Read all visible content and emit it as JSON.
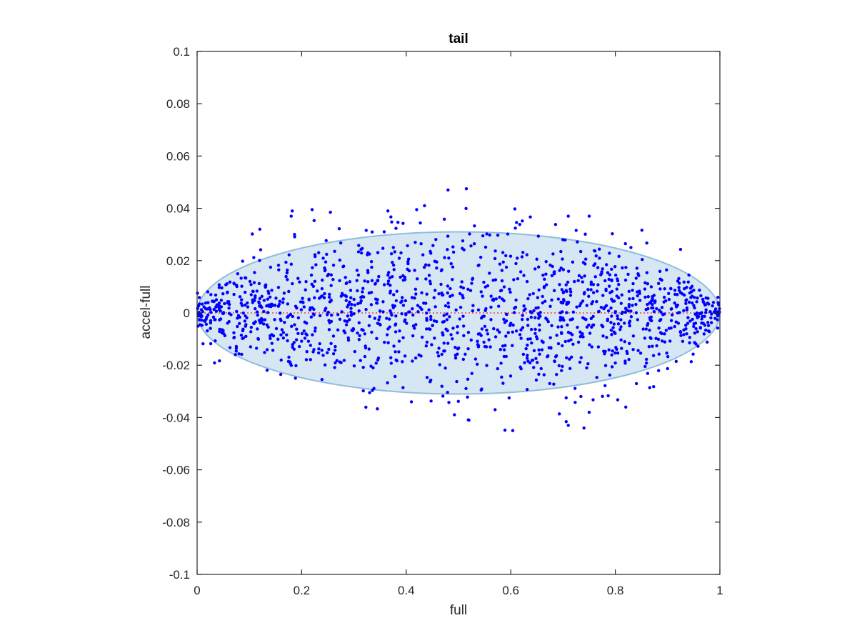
{
  "chart_data": {
    "type": "scatter",
    "title": "tail",
    "xlabel": "full",
    "ylabel": "accel-full",
    "xlim": [
      0,
      1
    ],
    "ylim": [
      -0.1,
      0.1
    ],
    "xticks": [
      0,
      0.2,
      0.4,
      0.6,
      0.8,
      1
    ],
    "xtick_labels": [
      "0",
      "0.2",
      "0.4",
      "0.6",
      "0.8",
      "1"
    ],
    "yticks": [
      -0.1,
      -0.08,
      -0.06,
      -0.04,
      -0.02,
      0,
      0.02,
      0.04,
      0.06,
      0.08,
      0.1
    ],
    "ytick_labels": [
      "-0.1",
      "-0.08",
      "-0.06",
      "-0.04",
      "-0.02",
      "0",
      "0.02",
      "0.04",
      "0.06",
      "0.08",
      "0.1"
    ],
    "grid": false,
    "box": true,
    "colors": {
      "points": "#0000ff",
      "ellipse_fill": "#d6e6f2",
      "ellipse_edge": "#8fbcdc",
      "reference_line": "#ff3333",
      "axes": "#262626"
    },
    "ellipse": {
      "center": [
        0.5,
        0
      ],
      "semi_axis_x": 0.5,
      "semi_axis_y": 0.031
    },
    "reference_line": {
      "y": 0,
      "style": "dotted"
    },
    "annotated_points": [
      {
        "x": 0.48,
        "y": 0.047
      },
      {
        "x": 0.515,
        "y": 0.0475
      },
      {
        "x": 0.22,
        "y": 0.0395
      },
      {
        "x": 0.255,
        "y": 0.0385
      },
      {
        "x": 0.18,
        "y": 0.037
      },
      {
        "x": 0.435,
        "y": 0.041
      },
      {
        "x": 0.42,
        "y": 0.0395
      },
      {
        "x": 0.365,
        "y": 0.039
      },
      {
        "x": 0.71,
        "y": 0.037
      },
      {
        "x": 0.75,
        "y": 0.037
      },
      {
        "x": 0.12,
        "y": 0.032
      },
      {
        "x": 0.52,
        "y": -0.041
      },
      {
        "x": 0.41,
        "y": -0.034
      },
      {
        "x": 0.71,
        "y": -0.043
      },
      {
        "x": 0.74,
        "y": -0.044
      },
      {
        "x": 0.75,
        "y": -0.038
      },
      {
        "x": 0.57,
        "y": -0.037
      },
      {
        "x": 0.82,
        "y": -0.036
      },
      {
        "x": 0.33,
        "y": -0.0305
      },
      {
        "x": 0.16,
        "y": -0.0235
      }
    ]
  }
}
